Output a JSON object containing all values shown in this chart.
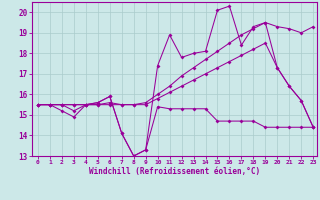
{
  "background_color": "#cce8e8",
  "grid_color": "#aacccc",
  "line_color": "#990099",
  "xlabel": "Windchill (Refroidissement éolien,°C)",
  "xlim": [
    -0.5,
    23.3
  ],
  "ylim": [
    13,
    20.5
  ],
  "yticks": [
    13,
    14,
    15,
    16,
    17,
    18,
    19,
    20
  ],
  "xticks": [
    0,
    1,
    2,
    3,
    4,
    5,
    6,
    7,
    8,
    9,
    10,
    11,
    12,
    13,
    14,
    15,
    16,
    17,
    18,
    19,
    20,
    21,
    22,
    23
  ],
  "series": [
    {
      "x": [
        0,
        1,
        2,
        3,
        4,
        5,
        6,
        7,
        8,
        9,
        10,
        11,
        12,
        13,
        14,
        15,
        16,
        17,
        18,
        19,
        20,
        21,
        22,
        23
      ],
      "y": [
        15.5,
        15.5,
        15.2,
        14.9,
        15.5,
        15.6,
        15.9,
        14.1,
        13.0,
        13.3,
        15.4,
        15.3,
        15.3,
        15.3,
        15.3,
        14.7,
        14.7,
        14.7,
        14.7,
        14.4,
        14.4,
        14.4,
        14.4,
        14.4
      ]
    },
    {
      "x": [
        0,
        1,
        2,
        3,
        4,
        5,
        6,
        7,
        8,
        9,
        10,
        11,
        12,
        13,
        14,
        15,
        16,
        17,
        18,
        19,
        20,
        21,
        22,
        23
      ],
      "y": [
        15.5,
        15.5,
        15.5,
        15.5,
        15.5,
        15.5,
        15.5,
        15.5,
        15.5,
        15.5,
        15.8,
        16.1,
        16.4,
        16.7,
        17.0,
        17.3,
        17.6,
        17.9,
        18.2,
        18.5,
        17.3,
        16.4,
        15.7,
        14.4
      ]
    },
    {
      "x": [
        0,
        1,
        2,
        3,
        4,
        5,
        6,
        7,
        8,
        9,
        10,
        11,
        12,
        13,
        14,
        15,
        16,
        17,
        18,
        19,
        20,
        21,
        22,
        23
      ],
      "y": [
        15.5,
        15.5,
        15.5,
        15.2,
        15.5,
        15.6,
        15.9,
        14.1,
        13.0,
        13.3,
        17.4,
        18.9,
        17.8,
        18.0,
        18.1,
        20.1,
        20.3,
        18.4,
        19.3,
        19.5,
        17.3,
        16.4,
        15.7,
        14.4
      ]
    },
    {
      "x": [
        0,
        1,
        2,
        3,
        4,
        5,
        6,
        7,
        8,
        9,
        10,
        11,
        12,
        13,
        14,
        15,
        16,
        17,
        18,
        19,
        20,
        21,
        22,
        23
      ],
      "y": [
        15.5,
        15.5,
        15.5,
        15.5,
        15.5,
        15.5,
        15.6,
        15.5,
        15.5,
        15.6,
        16.0,
        16.4,
        16.9,
        17.3,
        17.7,
        18.1,
        18.5,
        18.9,
        19.2,
        19.5,
        19.3,
        19.2,
        19.0,
        19.3
      ]
    }
  ]
}
